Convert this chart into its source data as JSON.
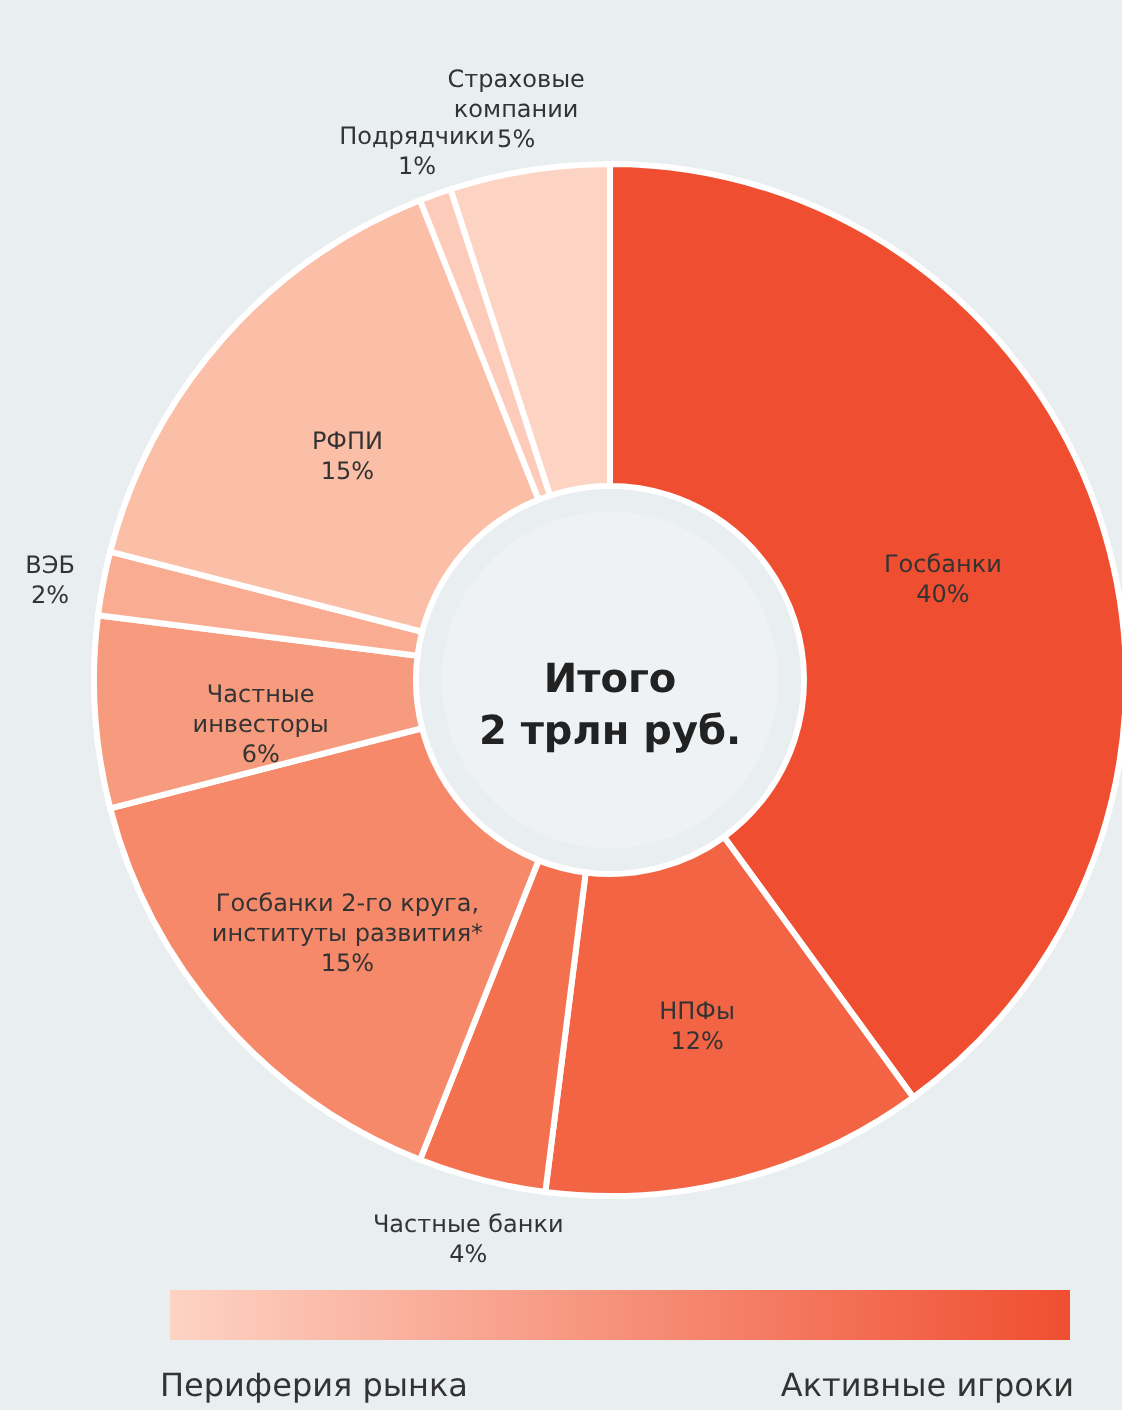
{
  "chart_data": {
    "type": "donut",
    "categories": [
      "Госбанки",
      "НПФы",
      "Частные банки",
      "Госбанки 2-го круга,\nинституты развития*",
      "Частные\nинвесторы",
      "ВЭБ",
      "РФПИ",
      "Подрядчики",
      "Страховые\nкомпании"
    ],
    "values": [
      40,
      12,
      4,
      15,
      6,
      2,
      15,
      1,
      5
    ],
    "colors": [
      "#f04e30",
      "#f26444",
      "#f3714f",
      "#f5896a",
      "#f79b7e",
      "#f9ac91",
      "#fbbea6",
      "#fccbb9",
      "#fdd3c4"
    ],
    "value_labels": [
      "40%",
      "12%",
      "4%",
      "15%",
      "6%",
      "2%",
      "15%",
      "1%",
      "5%"
    ],
    "annotations": [
      "Итого\n2 трлн руб.",
      "Периферия рынка",
      "Активные игроки"
    ]
  }
}
